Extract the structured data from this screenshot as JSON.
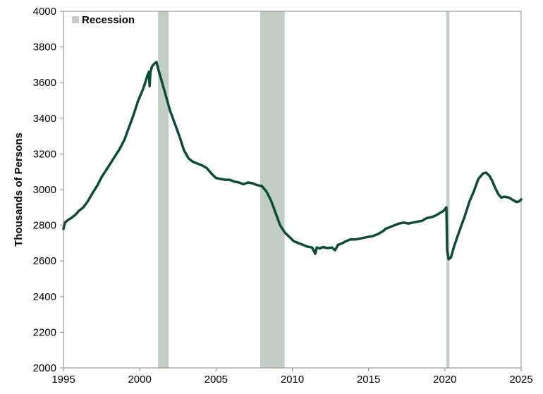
{
  "chart_data": {
    "type": "line",
    "title": "",
    "xlabel": "",
    "ylabel": "Thousands of Persons",
    "xlim": [
      1995,
      2025
    ],
    "ylim": [
      2000,
      4000
    ],
    "x_ticks": [
      1995,
      2000,
      2005,
      2010,
      2015,
      2020,
      2025
    ],
    "y_ticks": [
      2000,
      2200,
      2400,
      2600,
      2800,
      3000,
      3200,
      3400,
      3600,
      3800,
      4000
    ],
    "grid": false,
    "legend": {
      "position": "top-left",
      "entries": [
        "Recession"
      ]
    },
    "colors": {
      "line": "#0c4a3a",
      "recession": "#c2cdc4"
    },
    "recessions": [
      {
        "start": 2001.2,
        "end": 2001.9
      },
      {
        "start": 2007.9,
        "end": 2009.5
      },
      {
        "start": 2020.1,
        "end": 2020.3
      }
    ],
    "series": [
      {
        "x": [
          1995.0,
          1995.1,
          1995.3,
          1995.5,
          1995.8,
          1996.0,
          1996.3,
          1996.6,
          1996.9,
          1997.2,
          1997.5,
          1997.8,
          1998.1,
          1998.4,
          1998.7,
          1999.0,
          1999.3,
          1999.6,
          1999.9,
          2000.2,
          2000.4,
          2000.5,
          2000.6,
          2000.65,
          2000.7,
          2000.8,
          2000.9,
          2001.0,
          2001.1,
          2001.2,
          2001.4,
          2001.6,
          2001.8,
          2002.0,
          2002.3,
          2002.6,
          2002.9,
          2003.2,
          2003.5,
          2003.8,
          2004.1,
          2004.4,
          2004.7,
          2005.0,
          2005.3,
          2005.6,
          2005.9,
          2006.2,
          2006.5,
          2006.8,
          2007.1,
          2007.4,
          2007.7,
          2008.0,
          2008.3,
          2008.6,
          2008.9,
          2009.2,
          2009.5,
          2009.8,
          2010.1,
          2010.4,
          2010.7,
          2011.0,
          2011.3,
          2011.5,
          2011.6,
          2011.8,
          2012.0,
          2012.3,
          2012.6,
          2012.8,
          2013.0,
          2013.3,
          2013.5,
          2013.8,
          2014.1,
          2014.4,
          2014.7,
          2015.0,
          2015.3,
          2015.6,
          2015.8,
          2016.0,
          2016.1,
          2016.4,
          2016.7,
          2017.0,
          2017.3,
          2017.6,
          2017.9,
          2018.2,
          2018.5,
          2018.8,
          2019.1,
          2019.4,
          2019.7,
          2019.9,
          2020.1,
          2020.15,
          2020.25,
          2020.4,
          2020.6,
          2020.8,
          2021.0,
          2021.3,
          2021.6,
          2021.9,
          2022.2,
          2022.5,
          2022.7,
          2022.9,
          2023.1,
          2023.3,
          2023.5,
          2023.7,
          2023.9,
          2024.2,
          2024.5,
          2024.7,
          2024.9,
          2025.0
        ],
        "y": [
          2780,
          2815,
          2830,
          2840,
          2860,
          2880,
          2900,
          2935,
          2980,
          3020,
          3070,
          3110,
          3150,
          3190,
          3230,
          3280,
          3350,
          3420,
          3500,
          3560,
          3610,
          3640,
          3660,
          3580,
          3660,
          3690,
          3700,
          3710,
          3715,
          3680,
          3620,
          3560,
          3500,
          3440,
          3370,
          3300,
          3220,
          3175,
          3155,
          3145,
          3135,
          3120,
          3090,
          3065,
          3060,
          3055,
          3055,
          3045,
          3040,
          3030,
          3040,
          3035,
          3025,
          3020,
          2990,
          2940,
          2870,
          2800,
          2760,
          2735,
          2710,
          2700,
          2690,
          2680,
          2675,
          2640,
          2675,
          2670,
          2678,
          2672,
          2675,
          2660,
          2690,
          2700,
          2710,
          2720,
          2720,
          2725,
          2730,
          2735,
          2740,
          2750,
          2760,
          2770,
          2780,
          2790,
          2800,
          2810,
          2815,
          2810,
          2815,
          2820,
          2825,
          2840,
          2845,
          2855,
          2870,
          2880,
          2900,
          2660,
          2610,
          2620,
          2680,
          2730,
          2780,
          2850,
          2930,
          2990,
          3060,
          3090,
          3095,
          3080,
          3050,
          3010,
          2975,
          2955,
          2960,
          2955,
          2940,
          2930,
          2935,
          2945
        ]
      }
    ]
  }
}
